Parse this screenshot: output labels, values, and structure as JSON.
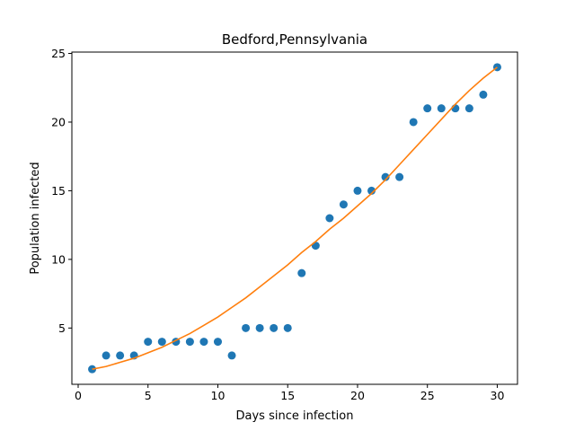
{
  "chart_data": {
    "type": "scatter",
    "title": "Bedford,Pennsylvania",
    "xlabel": "Days since infection",
    "ylabel": "Population infected",
    "xlim": [
      -0.45,
      31.45
    ],
    "ylim": [
      0.9,
      25.1
    ],
    "xticks": [
      0,
      5,
      10,
      15,
      20,
      25,
      30
    ],
    "yticks": [
      5,
      10,
      15,
      20,
      25
    ],
    "grid": false,
    "series": [
      {
        "kind": "scatter",
        "color": "#1f77b4",
        "x": [
          1,
          2,
          3,
          4,
          5,
          6,
          7,
          8,
          9,
          10,
          11,
          12,
          13,
          14,
          15,
          16,
          17,
          18,
          19,
          20,
          21,
          22,
          23,
          24,
          25,
          26,
          27,
          28,
          29,
          30
        ],
        "y": [
          2,
          3,
          3,
          3,
          4,
          4,
          4,
          4,
          4,
          4,
          3,
          5,
          5,
          5,
          5,
          9,
          11,
          13,
          14,
          15,
          15,
          16,
          16,
          20,
          21,
          21,
          21,
          21,
          22,
          24
        ]
      },
      {
        "kind": "line",
        "color": "#ff7f0e",
        "x": [
          1,
          2,
          3,
          4,
          5,
          6,
          7,
          8,
          9,
          10,
          11,
          12,
          13,
          14,
          15,
          16,
          17,
          18,
          19,
          20,
          21,
          22,
          23,
          24,
          25,
          26,
          27,
          28,
          29,
          30
        ],
        "y": [
          2.0,
          2.2,
          2.5,
          2.8,
          3.2,
          3.6,
          4.1,
          4.6,
          5.2,
          5.8,
          6.5,
          7.2,
          8.0,
          8.8,
          9.6,
          10.5,
          11.3,
          12.2,
          13.0,
          13.9,
          14.8,
          15.8,
          16.9,
          18.0,
          19.1,
          20.2,
          21.3,
          22.3,
          23.2,
          24.0
        ]
      }
    ]
  }
}
